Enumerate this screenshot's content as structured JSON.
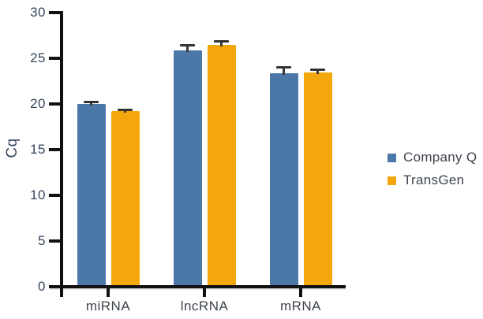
{
  "chart_data": {
    "type": "bar",
    "categories": [
      "miRNA",
      "lncRNA",
      "mRNA"
    ],
    "series": [
      {
        "name": "Company Q",
        "color": "#4C78A7",
        "values": [
          20.0,
          25.9,
          23.4
        ],
        "errors": [
          0.2,
          0.5,
          0.6
        ]
      },
      {
        "name": "TransGen",
        "color": "#F4A70D",
        "values": [
          19.2,
          26.5,
          23.45
        ],
        "errors": [
          0.15,
          0.35,
          0.3
        ]
      }
    ],
    "ylabel": "Cq",
    "xlabel": "",
    "ylim": [
      0,
      30
    ],
    "yticks": [
      0,
      5,
      10,
      15,
      20,
      25,
      30
    ],
    "grid": false,
    "legend_position": "right",
    "error_bars": true
  },
  "colors": {
    "background": "#ffffff",
    "axis": "#111111",
    "error_bar": "#3a3a3a",
    "tick_label_text": "#35455c",
    "category_label_text": "#3d434d"
  }
}
